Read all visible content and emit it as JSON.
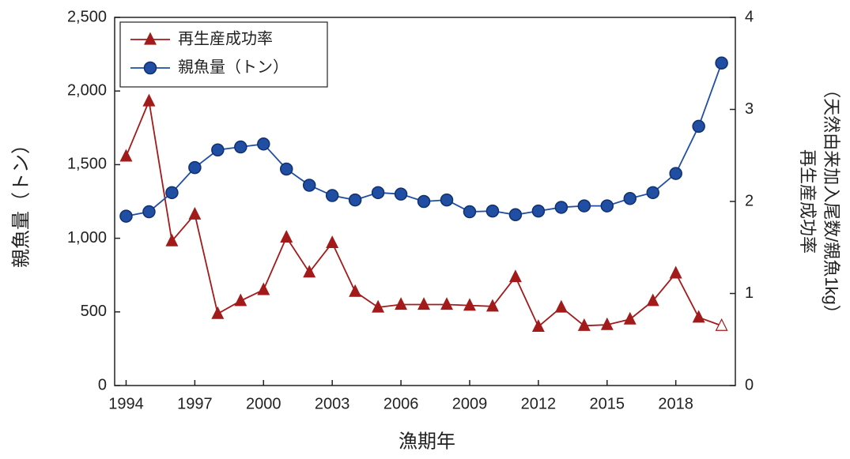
{
  "chart_data": {
    "type": "line",
    "x_label": "漁期年",
    "y_label": "親魚量（トン）",
    "y2_label": [
      "再生産成功率",
      "（天然由来加入尾数/親魚1kg）"
    ],
    "x": [
      1994,
      1995,
      1996,
      1997,
      1998,
      1999,
      2000,
      2001,
      2002,
      2003,
      2004,
      2005,
      2006,
      2007,
      2008,
      2009,
      2010,
      2011,
      2012,
      2013,
      2014,
      2015,
      2016,
      2017,
      2018,
      2019,
      2020
    ],
    "xlim": [
      1993.5,
      2020.6
    ],
    "xticks": [
      1994,
      1997,
      2000,
      2003,
      2006,
      2009,
      2012,
      2015,
      2018
    ],
    "ylim": [
      0,
      2500
    ],
    "yticks": [
      0,
      500,
      {
        "value": 1000,
        "label": "1,000"
      },
      {
        "value": 1500,
        "label": "1,500"
      },
      {
        "value": 2000,
        "label": "2,000"
      },
      {
        "value": 2500,
        "label": "2,500"
      }
    ],
    "y2lim": [
      0,
      4
    ],
    "y2ticks": [
      0,
      1,
      2,
      3,
      4
    ],
    "legend": "upper left",
    "series": [
      {
        "name": "再生産成功率",
        "color": "#a31a1a",
        "marker": "triangle",
        "axis": "y2",
        "last_marker": "hollow",
        "values": [
          2.49,
          3.09,
          1.57,
          1.86,
          0.78,
          0.92,
          1.04,
          1.61,
          1.23,
          1.55,
          1.02,
          0.85,
          0.88,
          0.88,
          0.88,
          0.87,
          0.86,
          1.18,
          0.64,
          0.85,
          0.65,
          0.66,
          0.72,
          0.92,
          1.22,
          0.74,
          0.65
        ]
      },
      {
        "name": "親魚量（トン）",
        "color": "#1f4ea3",
        "marker": "circle",
        "axis": "y",
        "values": [
          1150,
          1180,
          1310,
          1480,
          1600,
          1620,
          1640,
          1470,
          1360,
          1290,
          1260,
          1310,
          1300,
          1250,
          1260,
          1180,
          1185,
          1160,
          1185,
          1210,
          1220,
          1220,
          1270,
          1310,
          1440,
          1760,
          2190
        ]
      }
    ]
  }
}
